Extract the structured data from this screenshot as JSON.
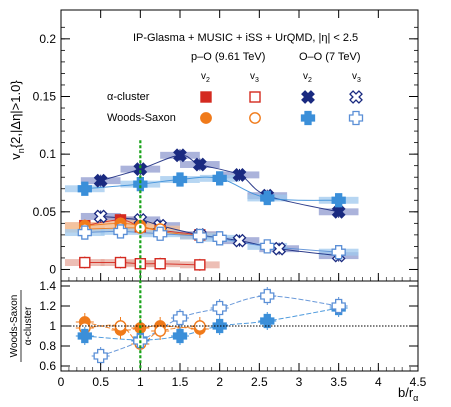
{
  "colors": {
    "pO": "#d42a20",
    "pOv3": "#e8624a",
    "OO": "#1a2a80",
    "OOlight": "#5b8fd6",
    "WSorange": "#f07a1a",
    "WSblue": "#3b8fd9",
    "band_OO_cluster": "#8f99cf",
    "band_pO": "#e7a89c",
    "band_OO_ws": "#9fc8ee",
    "band_pO_ws": "#f6c39b",
    "vline": "#19a319"
  },
  "chart_data": [
    {
      "type": "scatter",
      "title": "IP-Glasma + MUSIC + iSS + UrQMD, |η| < 2.5",
      "header": {
        "pO": "p–O (9.61 TeV)",
        "OO": "O–O (7 TeV)",
        "v2": "v",
        "v2_sub": "2",
        "v3": "v",
        "v3_sub": "3"
      },
      "legend_rows": [
        "α-cluster",
        "Woods-Saxon"
      ],
      "ylabel": "v",
      "ylabel_sub": "n",
      "ylabel_rest": "{2,|Δη|>1.0}",
      "ylim": [
        -0.01,
        0.225
      ],
      "xlim": [
        0,
        4.5
      ],
      "yticks": [
        0,
        0.05,
        0.1,
        0.15,
        0.2
      ],
      "ytick_labels": [
        "0",
        "0.05",
        "0.1",
        "0.15",
        "0.2"
      ],
      "vline_x": 1.0,
      "series": [
        {
          "name": "α-cluster p–O v2",
          "color": "pO",
          "marker": "square-filled",
          "x": [
            0.3,
            0.75,
            1.0,
            1.25,
            1.75
          ],
          "y": [
            0.038,
            0.043,
            0.037,
            0.034,
            0.03
          ]
        },
        {
          "name": "α-cluster p–O v3",
          "color": "pO",
          "marker": "square-open",
          "x": [
            0.3,
            0.75,
            1.0,
            1.25,
            1.75
          ],
          "y": [
            0.006,
            0.006,
            0.005,
            0.005,
            0.004
          ]
        },
        {
          "name": "α-cluster O–O v2",
          "color": "OO",
          "marker": "x-filled",
          "x": [
            0.5,
            1.0,
            1.5,
            1.75,
            2.25,
            2.6,
            3.5
          ],
          "y": [
            0.077,
            0.087,
            0.099,
            0.091,
            0.082,
            0.064,
            0.05
          ]
        },
        {
          "name": "α-cluster O–O v3",
          "color": "OO",
          "marker": "x-open",
          "x": [
            0.5,
            1.0,
            1.25,
            1.75,
            2.25,
            2.75,
            3.5
          ],
          "y": [
            0.046,
            0.043,
            0.038,
            0.03,
            0.025,
            0.018,
            0.012
          ]
        },
        {
          "name": "Woods-Saxon p–O v2",
          "color": "WSorange",
          "marker": "circle-filled",
          "x": [
            0.3,
            0.75,
            1.0,
            1.25,
            1.75
          ],
          "y": [
            0.038,
            0.04,
            0.038,
            0.033,
            0.029
          ]
        },
        {
          "name": "Woods-Saxon p–O v3",
          "color": "WSorange",
          "marker": "circle-open",
          "x": [
            0.3,
            0.75,
            1.0,
            1.25
          ],
          "y": [
            0.035,
            0.036,
            0.036,
            0.035
          ]
        },
        {
          "name": "Woods-Saxon O–O v2",
          "color": "WSblue",
          "marker": "plus-filled",
          "x": [
            0.3,
            1.0,
            1.5,
            2.0,
            2.6,
            3.5
          ],
          "y": [
            0.07,
            0.074,
            0.078,
            0.079,
            0.062,
            0.06
          ]
        },
        {
          "name": "Woods-Saxon O–O v3",
          "color": "OOlight",
          "marker": "plus-open",
          "x": [
            0.3,
            0.75,
            1.25,
            1.75,
            2.0,
            2.6,
            3.5
          ],
          "y": [
            0.032,
            0.033,
            0.031,
            0.029,
            0.027,
            0.02,
            0.015
          ]
        }
      ]
    },
    {
      "type": "scatter",
      "ylabel": "Woods-Saxon",
      "ylabel2": "α-cluster",
      "xlabel": "b/r",
      "xlabel_sub": "α",
      "ylim": [
        0.55,
        1.45
      ],
      "xlim": [
        0,
        4.5
      ],
      "yticks": [
        0.6,
        0.8,
        1.0,
        1.2,
        1.4
      ],
      "ytick_labels": [
        "0.6",
        "0.8",
        "1",
        "1.2",
        "1.4"
      ],
      "xticks": [
        0,
        0.5,
        1,
        1.5,
        2,
        2.5,
        3,
        3.5,
        4,
        4.5
      ],
      "xtick_labels": [
        "0",
        "0.5",
        "1",
        "1.5",
        "2",
        "2.5",
        "3",
        "3.5",
        "4",
        "4.5"
      ],
      "reference_y": 1.0,
      "series": [
        {
          "name": "p–O v2 ratio",
          "color": "WSorange",
          "marker": "circle-filled",
          "x": [
            0.3,
            0.75,
            1.0,
            1.25,
            1.75
          ],
          "y": [
            1.04,
            0.96,
            0.98,
            1.0,
            0.97
          ]
        },
        {
          "name": "p–O v3 ratio",
          "color": "WSorange",
          "marker": "circle-open",
          "x": [
            0.3,
            0.75,
            1.0,
            1.25,
            1.75
          ],
          "y": [
            0.98,
            1.0,
            0.82,
            0.95,
            1.0
          ]
        },
        {
          "name": "O–O v2 ratio",
          "color": "WSblue",
          "marker": "plus-filled",
          "x": [
            0.3,
            1.0,
            1.5,
            2.0,
            2.6,
            3.5
          ],
          "y": [
            0.9,
            0.86,
            0.9,
            1.0,
            1.05,
            1.18
          ]
        },
        {
          "name": "O–O v3 ratio",
          "color": "OOlight",
          "marker": "plus-open",
          "x": [
            0.5,
            1.0,
            1.5,
            2.0,
            2.6,
            3.5
          ],
          "y": [
            0.7,
            0.85,
            1.08,
            1.18,
            1.3,
            1.2
          ]
        }
      ]
    }
  ]
}
